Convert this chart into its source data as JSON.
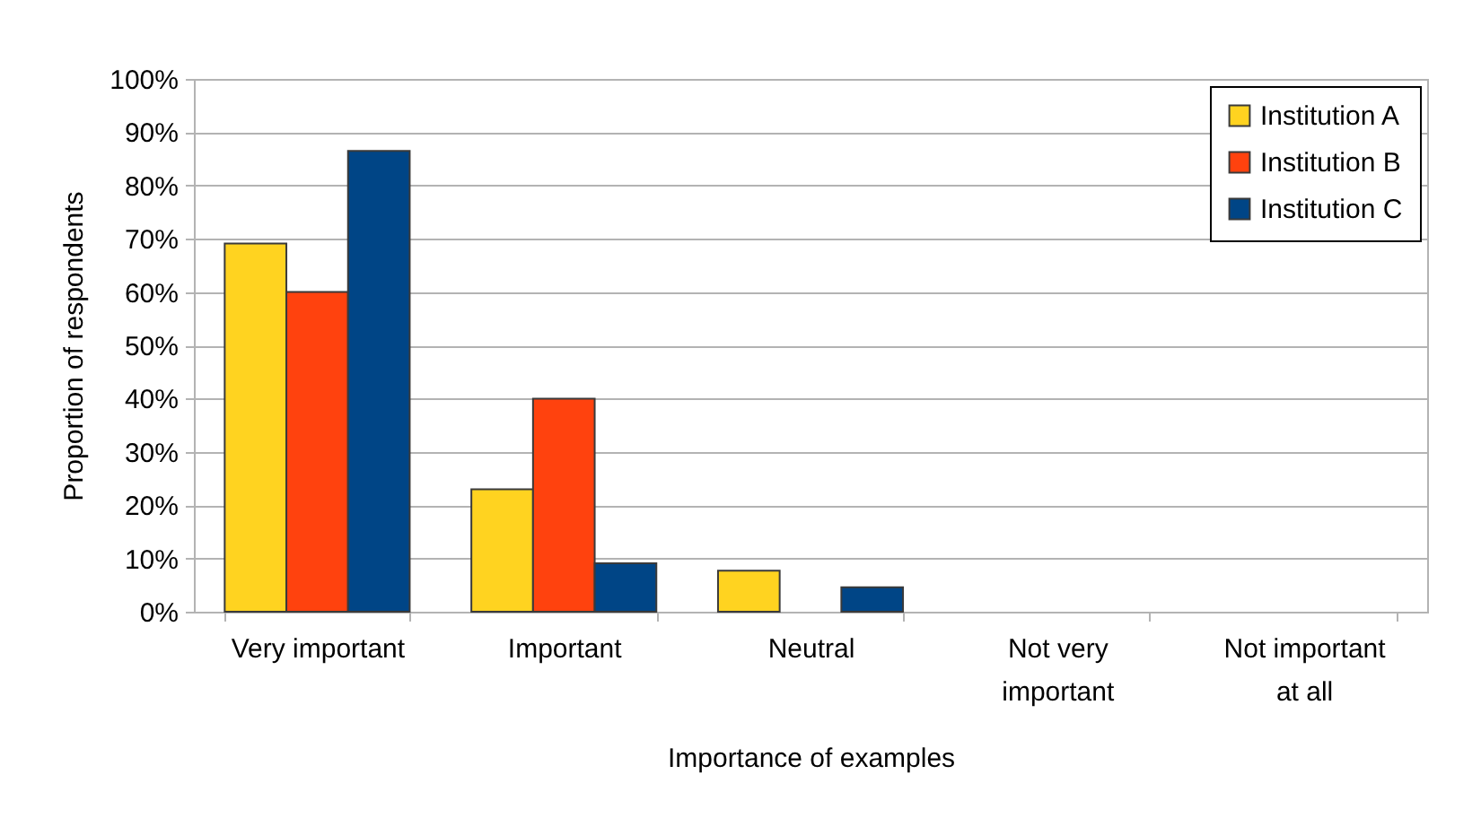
{
  "chart_data": {
    "type": "bar",
    "xlabel": "Importance of examples",
    "ylabel": "Proportion of respondents",
    "categories": [
      "Very important",
      "Important",
      "Neutral",
      "Not very important",
      "Not important at all"
    ],
    "series": [
      {
        "name": "Institution A",
        "color": "#ffd320",
        "values": [
          69.1,
          23,
          7.7,
          0,
          0
        ]
      },
      {
        "name": "Institution B",
        "color": "#ff420e",
        "values": [
          60,
          40,
          0,
          0,
          0
        ]
      },
      {
        "name": "Institution C",
        "color": "#004586",
        "values": [
          86.5,
          9.1,
          4.6,
          0,
          0
        ]
      }
    ],
    "ylim": [
      0,
      100
    ],
    "yticks": [
      {
        "value": 0,
        "label": "0%"
      },
      {
        "value": 10,
        "label": "10%"
      },
      {
        "value": 20,
        "label": "20%"
      },
      {
        "value": 30,
        "label": "30%"
      },
      {
        "value": 40,
        "label": "40%"
      },
      {
        "value": 50,
        "label": "50%"
      },
      {
        "value": 60,
        "label": "60%"
      },
      {
        "value": 70,
        "label": "70%"
      },
      {
        "value": 80,
        "label": "80%"
      },
      {
        "value": 90,
        "label": "90%"
      },
      {
        "value": 100,
        "label": "100%"
      }
    ],
    "grid": true,
    "legend": "top right"
  }
}
